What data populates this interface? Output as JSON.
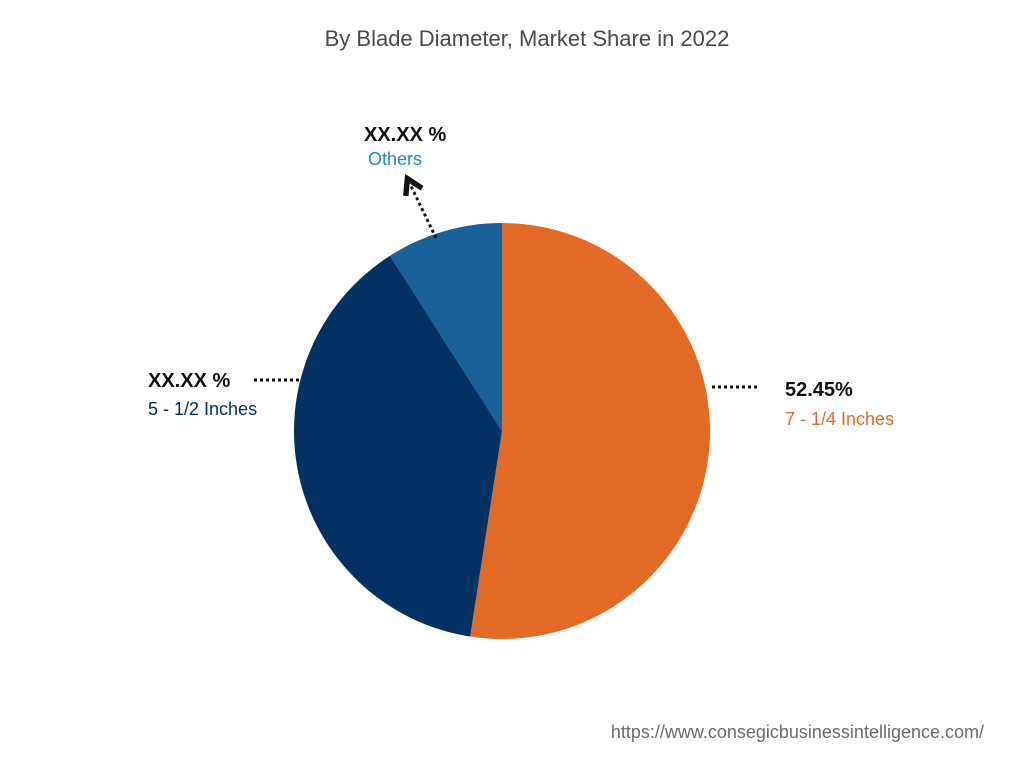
{
  "chart_data": {
    "type": "pie",
    "title": "By Blade Diameter, Market Share in 2022",
    "slices": [
      {
        "name": "7 - 1/4 Inches",
        "value_label": "52.45%",
        "value": 52.45,
        "color": "#e36a26"
      },
      {
        "name": "5 - 1/2 Inches",
        "value_label": "XX.XX %",
        "value": 38.5,
        "color": "#013263"
      },
      {
        "name": "Others",
        "value_label": "XX.XX %",
        "value": 9.05,
        "color": "#19619b"
      }
    ],
    "start_angle_deg": 0,
    "direction": "clockwise"
  },
  "footer": {
    "source_url": "https://www.consegicbusinessintelligence.com/"
  }
}
